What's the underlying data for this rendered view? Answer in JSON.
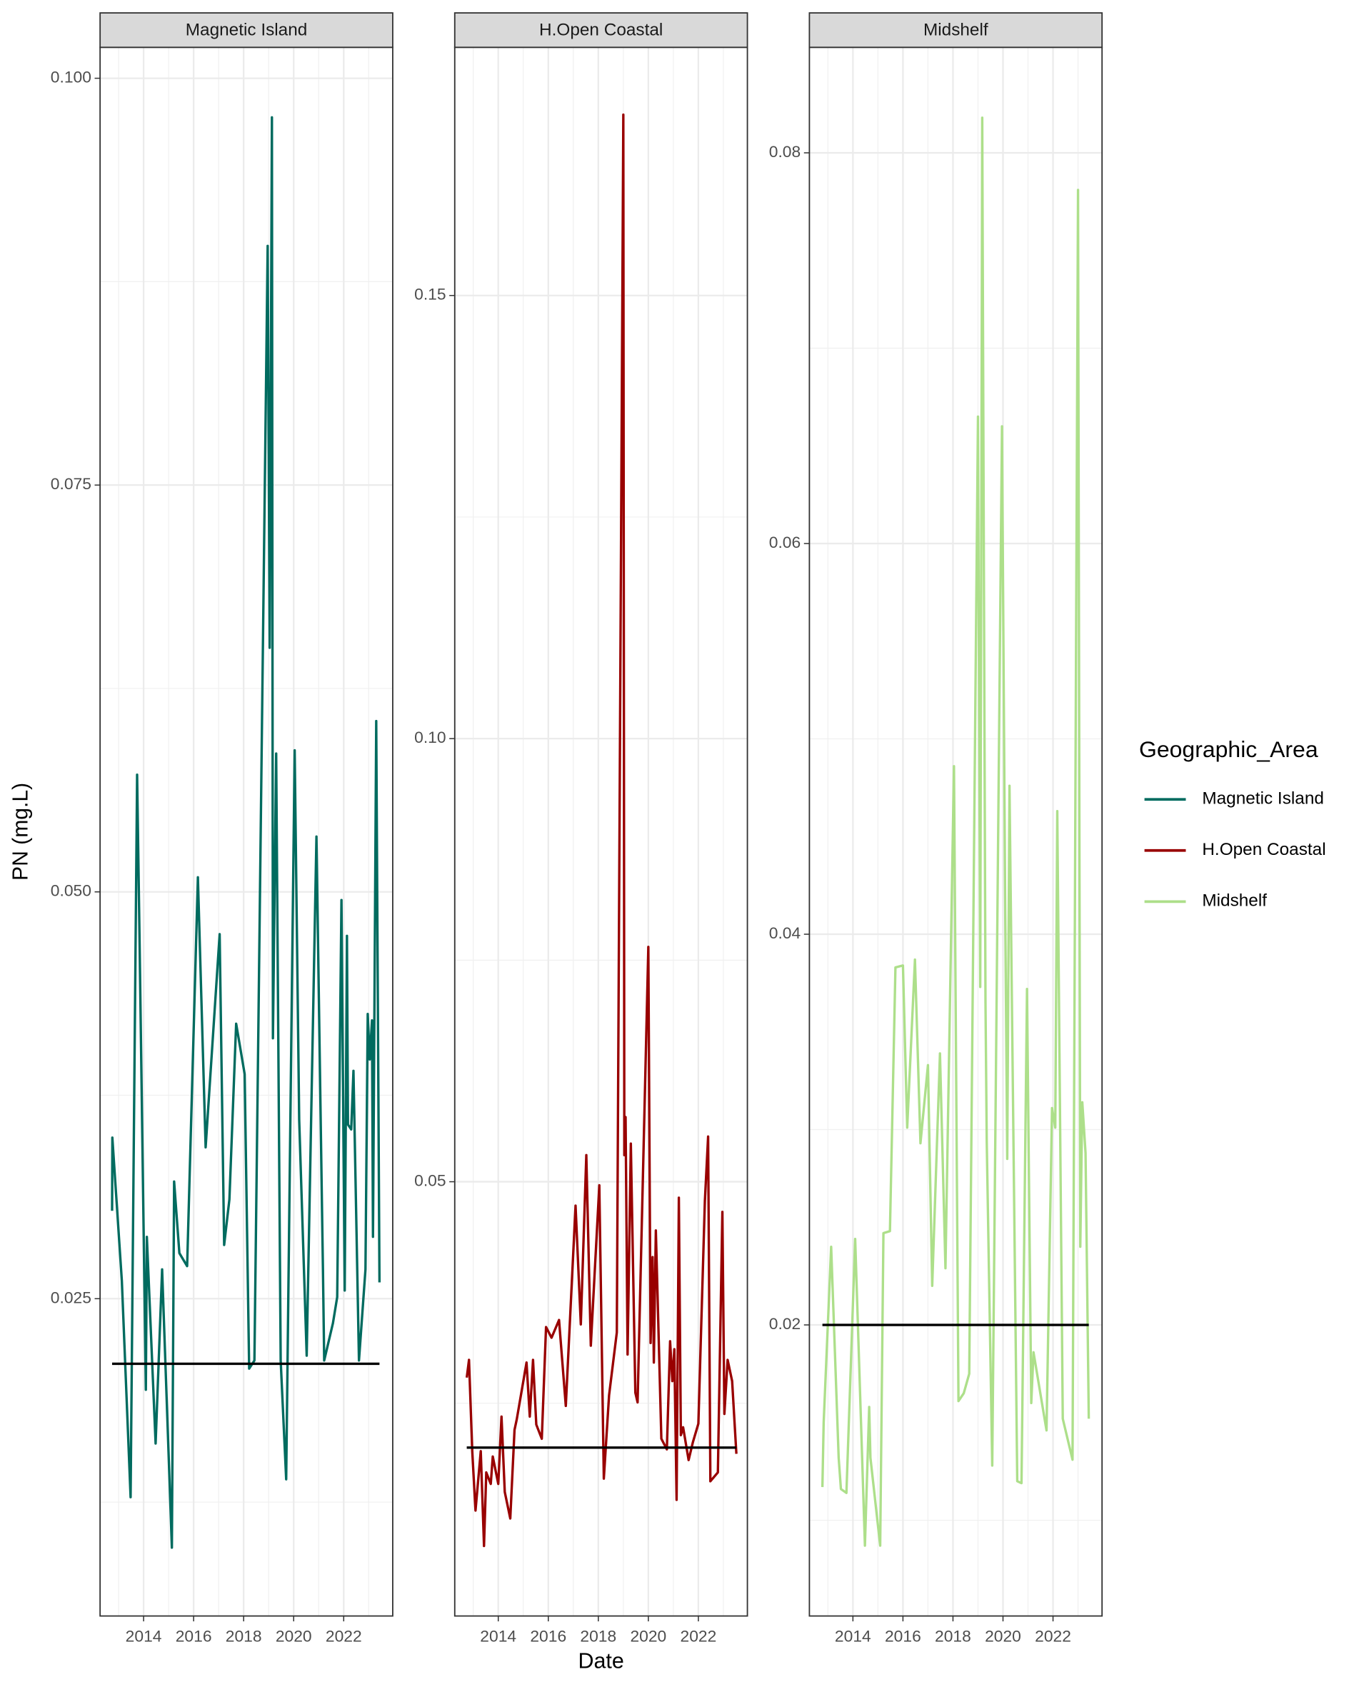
{
  "chart_data": [
    {
      "type": "line",
      "title": "Magnetic Island",
      "ylabel": "PN (mg.L)",
      "legend_title": "Geographic_Area",
      "x": [
        2012.74,
        2012.75,
        2013.13,
        2013.48,
        2013.74,
        2013.83,
        2014.09,
        2014.13,
        2014.48,
        2014.74,
        2015.13,
        2015.22,
        2015.43,
        2015.74,
        2016.17,
        2016.48,
        2017.04,
        2017.22,
        2017.43,
        2017.7,
        2018.04,
        2018.22,
        2018.43,
        2018.96,
        2019.04,
        2019.13,
        2019.17,
        2019.3,
        2019.48,
        2019.7,
        2020.04,
        2020.22,
        2020.52,
        2020.91,
        2021.13,
        2021.17,
        2021.22,
        2021.57,
        2021.74,
        2021.91,
        2022.04,
        2022.13,
        2022.17,
        2022.3,
        2022.39,
        2022.61,
        2022.87,
        2022.96,
        2023.04,
        2023.13,
        2023.17,
        2023.3,
        2023.43
      ],
      "series": [
        {
          "name": "Magnetic Island",
          "color": "#006b5f",
          "values": [
            0.0304,
            0.0349,
            0.0261,
            0.0128,
            0.0572,
            0.0479,
            0.0194,
            0.0288,
            0.0161,
            0.0268,
            0.0097,
            0.0322,
            0.0278,
            0.027,
            0.0509,
            0.0343,
            0.0474,
            0.0283,
            0.0311,
            0.0419,
            0.0388,
            0.0207,
            0.0212,
            0.0897,
            0.065,
            0.0976,
            0.041,
            0.0585,
            0.0212,
            0.0139,
            0.0587,
            0.036,
            0.0215,
            0.0534,
            0.0308,
            0.0268,
            0.0212,
            0.0235,
            0.0251,
            0.0495,
            0.0255,
            0.0473,
            0.0357,
            0.0354,
            0.039,
            0.0212,
            0.0268,
            0.0425,
            0.0397,
            0.0421,
            0.0288,
            0.0605,
            0.026
          ]
        }
      ],
      "hline": 0.021,
      "xlim": [
        2012.26,
        2023.96
      ],
      "xticks": [
        2014,
        2016,
        2018,
        2020,
        2022
      ],
      "xminor": [
        2013,
        2015,
        2017,
        2019,
        2021,
        2023
      ],
      "ylim": [
        0.0055,
        0.1019
      ],
      "yticks": [
        0.025,
        {
          "value": 0.05,
          "label": "0.050"
        },
        0.075,
        {
          "value": 0.1,
          "label": "0.100"
        }
      ],
      "yminor": [
        0.0125,
        0.0375,
        0.0625,
        0.0875
      ],
      "grid": true
    },
    {
      "type": "line",
      "title": "H.Open Coastal",
      "xlabel": "Date",
      "x": [
        2012.74,
        2012.83,
        2012.96,
        2013.09,
        2013.3,
        2013.43,
        2013.52,
        2013.7,
        2013.78,
        2014.0,
        2014.13,
        2014.26,
        2014.48,
        2014.65,
        2014.74,
        2015.13,
        2015.26,
        2015.39,
        2015.52,
        2015.74,
        2015.91,
        2016.13,
        2016.43,
        2016.7,
        2017.09,
        2017.3,
        2017.52,
        2017.7,
        2018.04,
        2018.22,
        2018.43,
        2018.74,
        2019.0,
        2019.04,
        2019.09,
        2019.17,
        2019.3,
        2019.48,
        2019.57,
        2020.0,
        2020.09,
        2020.17,
        2020.22,
        2020.3,
        2020.52,
        2020.74,
        2020.87,
        2020.96,
        2021.04,
        2021.13,
        2021.22,
        2021.3,
        2021.39,
        2021.61,
        2021.78,
        2022.0,
        2022.26,
        2022.39,
        2022.48,
        2022.78,
        2022.96,
        2023.04,
        2023.17,
        2023.35,
        2023.52
      ],
      "series": [
        {
          "name": "H.Open Coastal",
          "color": "#990000",
          "values": [
            0.0279,
            0.0299,
            0.0196,
            0.0129,
            0.0196,
            0.0089,
            0.0172,
            0.0159,
            0.019,
            0.0159,
            0.0235,
            0.015,
            0.012,
            0.022,
            0.0232,
            0.0296,
            0.0235,
            0.0299,
            0.0226,
            0.021,
            0.0336,
            0.0324,
            0.0344,
            0.0247,
            0.0473,
            0.0339,
            0.053,
            0.0315,
            0.0496,
            0.0165,
            0.0259,
            0.033,
            0.1704,
            0.053,
            0.0573,
            0.0305,
            0.0543,
            0.0262,
            0.0251,
            0.0765,
            0.0318,
            0.0415,
            0.0296,
            0.0445,
            0.021,
            0.0198,
            0.032,
            0.0275,
            0.0311,
            0.0141,
            0.0482,
            0.0214,
            0.0223,
            0.0186,
            0.0206,
            0.0227,
            0.0478,
            0.0551,
            0.0162,
            0.0172,
            0.0466,
            0.0238,
            0.0299,
            0.0275,
            0.0193
          ]
        }
      ],
      "hline": 0.02,
      "xlim": [
        2012.26,
        2023.96
      ],
      "xticks": [
        2014,
        2016,
        2018,
        2020,
        2022
      ],
      "xminor": [
        2013,
        2015,
        2017,
        2019,
        2021,
        2023
      ],
      "ylim": [
        0.001,
        0.178
      ],
      "yticks": [
        0.05,
        {
          "value": 0.1,
          "label": "0.10"
        },
        0.15
      ],
      "yminor": [
        0.025,
        0.075,
        0.125
      ],
      "grid": true
    },
    {
      "type": "line",
      "title": "Midshelf",
      "x": [
        2012.78,
        2012.83,
        2013.13,
        2013.43,
        2013.52,
        2013.74,
        2014.09,
        2014.48,
        2014.65,
        2014.7,
        2015.09,
        2015.22,
        2015.48,
        2015.7,
        2016.0,
        2016.17,
        2016.48,
        2016.7,
        2017.0,
        2017.17,
        2017.48,
        2017.7,
        2018.04,
        2018.22,
        2018.43,
        2018.65,
        2019.0,
        2019.09,
        2019.17,
        2019.3,
        2019.35,
        2019.57,
        2019.96,
        2020.09,
        2020.17,
        2020.26,
        2020.57,
        2020.74,
        2020.96,
        2021.13,
        2021.22,
        2021.74,
        2021.96,
        2022.09,
        2022.17,
        2022.39,
        2022.78,
        2023.0,
        2023.09,
        2023.17,
        2023.3,
        2023.43
      ],
      "series": [
        {
          "name": "Midshelf",
          "color": "#addf8a",
          "values": [
            0.0117,
            0.015,
            0.024,
            0.0132,
            0.0116,
            0.0114,
            0.0244,
            0.0087,
            0.0158,
            0.0132,
            0.0087,
            0.0247,
            0.0248,
            0.0383,
            0.0384,
            0.0301,
            0.0387,
            0.0293,
            0.0333,
            0.022,
            0.0339,
            0.0229,
            0.0486,
            0.0161,
            0.0165,
            0.0175,
            0.0665,
            0.0373,
            0.0818,
            0.0365,
            0.0294,
            0.0128,
            0.066,
            0.041,
            0.0285,
            0.0476,
            0.012,
            0.0119,
            0.0372,
            0.016,
            0.0186,
            0.0146,
            0.0311,
            0.0301,
            0.0463,
            0.0152,
            0.0131,
            0.0781,
            0.024,
            0.0314,
            0.0288,
            0.0152
          ]
        }
      ],
      "hline": 0.02,
      "xlim": [
        2012.26,
        2023.96
      ],
      "xticks": [
        2014,
        2016,
        2018,
        2020,
        2022
      ],
      "xminor": [
        2013,
        2015,
        2017,
        2019,
        2021,
        2023
      ],
      "ylim": [
        0.0051,
        0.0854
      ],
      "yticks": [
        0.02,
        0.04,
        0.06,
        0.08
      ],
      "yminor": [
        0.01,
        0.03,
        0.05,
        0.07
      ],
      "grid": true
    }
  ]
}
